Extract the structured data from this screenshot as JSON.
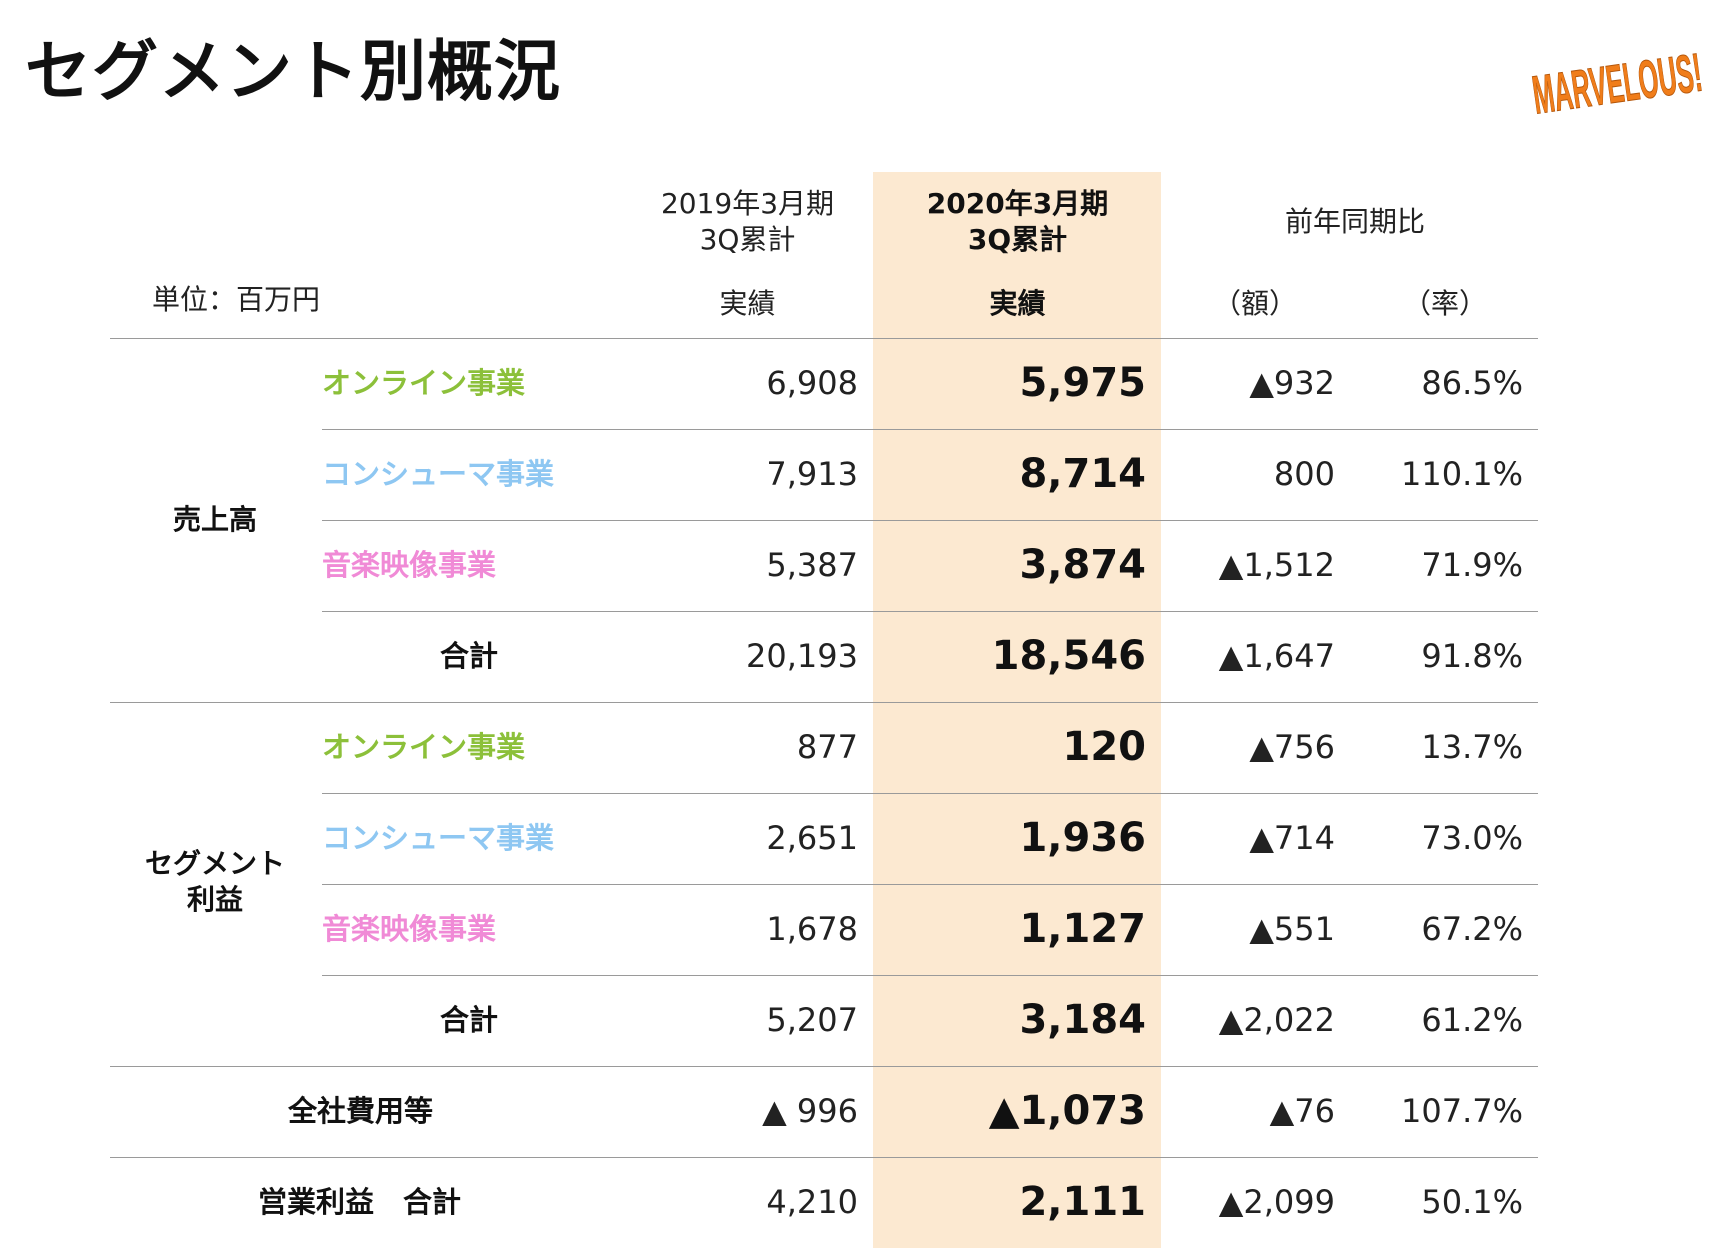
{
  "title": "セグメント別概況",
  "logo_text": "MARVELOUS!",
  "colors": {
    "highlight": "#fce9d1",
    "online": "#8cc03a",
    "consumer": "#8ec7f2",
    "music": "#f08ad6",
    "logo": "#f07d1a"
  },
  "header": {
    "unit": "単位：百万円",
    "prev_period_line1": "2019年3月期",
    "prev_period_line2": "3Q累計",
    "prev_sub": "実績",
    "cur_period_line1": "2020年3月期",
    "cur_period_line2": "3Q累計",
    "cur_sub": "実績",
    "yoy": "前年同期比",
    "yoy_amount": "（額）",
    "yoy_rate": "（率）"
  },
  "sales": {
    "label": "売上高",
    "rows": [
      {
        "segment": "オンライン事業",
        "prev": "6,908",
        "cur": "5,975",
        "diff": "▲932",
        "rate": "86.5%"
      },
      {
        "segment": "コンシューマ事業",
        "prev": "7,913",
        "cur": "8,714",
        "diff": "800",
        "rate": "110.1%"
      },
      {
        "segment": "音楽映像事業",
        "prev": "5,387",
        "cur": "3,874",
        "diff": "▲1,512",
        "rate": "71.9%"
      },
      {
        "segment": "合計",
        "prev": "20,193",
        "cur": "18,546",
        "diff": "▲1,647",
        "rate": "91.8%"
      }
    ]
  },
  "profit": {
    "label_line1": "セグメント",
    "label_line2": "利益",
    "rows": [
      {
        "segment": "オンライン事業",
        "prev": "877",
        "cur": "120",
        "diff": "▲756",
        "rate": "13.7%"
      },
      {
        "segment": "コンシューマ事業",
        "prev": "2,651",
        "cur": "1,936",
        "diff": "▲714",
        "rate": "73.0%"
      },
      {
        "segment": "音楽映像事業",
        "prev": "1,678",
        "cur": "1,127",
        "diff": "▲551",
        "rate": "67.2%"
      },
      {
        "segment": "合計",
        "prev": "5,207",
        "cur": "3,184",
        "diff": "▲2,022",
        "rate": "61.2%"
      }
    ]
  },
  "corporate": {
    "label": "全社費用等",
    "prev": "▲ 996",
    "cur": "▲1,073",
    "diff": "▲76",
    "rate": "107.7%"
  },
  "operating": {
    "label": "営業利益　合計",
    "prev": "4,210",
    "cur": "2,111",
    "diff": "▲2,099",
    "rate": "50.1%"
  }
}
